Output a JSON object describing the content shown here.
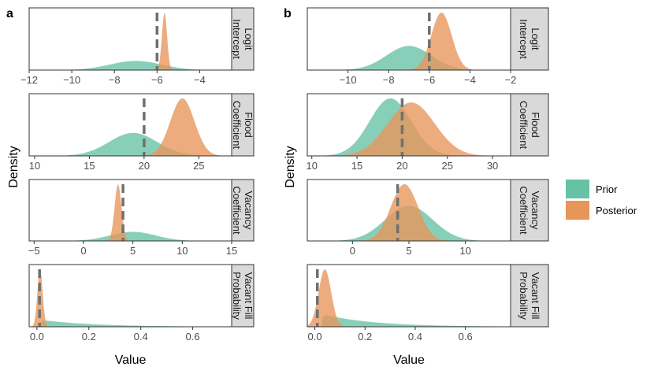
{
  "colors": {
    "prior": "#66c2a5",
    "posterior": "#e8955a",
    "strip": "#d9d9d9",
    "truth": "#707070"
  },
  "legend": {
    "prior": "Prior",
    "posterior": "Posterior"
  },
  "chart_data": [
    {
      "type": "area",
      "panel_label": "a",
      "ylabel": "Density",
      "xlabel": "Value",
      "facets": [
        {
          "strip": [
            "Logit",
            "Intercept"
          ],
          "xlim": [
            -12,
            -2.5
          ],
          "ticks": [
            -12,
            -10,
            -8,
            -6,
            -4
          ],
          "tick_labels": [
            "−12",
            "−10",
            "−8",
            "−6",
            "−4"
          ],
          "truth": -6,
          "prior": {
            "mean": -7,
            "sd": 1.2,
            "peak": 0.16
          },
          "posterior": {
            "mean": -5.65,
            "sd": 0.12,
            "peak": 1.0
          }
        },
        {
          "strip": [
            "Flood",
            "Coefficient"
          ],
          "xlim": [
            9.5,
            28
          ],
          "ticks": [
            10,
            15,
            20,
            25
          ],
          "tick_labels": [
            "10",
            "15",
            "20",
            "25"
          ],
          "truth": 20,
          "prior": {
            "mean": 19,
            "sd": 2.2,
            "peak": 0.4
          },
          "posterior": {
            "mean": 23.5,
            "sd": 1.1,
            "peak": 1.0
          }
        },
        {
          "strip": [
            "Vacancy",
            "Coefficient"
          ],
          "xlim": [
            -5.5,
            15
          ],
          "ticks": [
            -5,
            0,
            5,
            10,
            15
          ],
          "tick_labels": [
            "−5",
            "0",
            "5",
            "10",
            "15"
          ],
          "truth": 4,
          "prior": {
            "mean": 5,
            "sd": 2.3,
            "peak": 0.16
          },
          "posterior": {
            "mean": 3.5,
            "sd": 0.35,
            "peak": 1.0
          }
        },
        {
          "strip": [
            "Vacant Fill",
            "Probability"
          ],
          "xlim": [
            -0.03,
            0.75
          ],
          "ticks": [
            0,
            0.2,
            0.4,
            0.6
          ],
          "tick_labels": [
            "0.0",
            "0.2",
            "0.4",
            "0.6"
          ],
          "truth": 0.01,
          "prior": {
            "mean": 0.015,
            "sd": 0.2,
            "peak": 0.12,
            "skew": true
          },
          "posterior": {
            "mean": 0.012,
            "sd": 0.01,
            "peak": 1.0
          }
        }
      ]
    },
    {
      "type": "area",
      "panel_label": "b",
      "ylabel": "Density",
      "xlabel": "Value",
      "facets": [
        {
          "strip": [
            "Logit",
            "Intercept"
          ],
          "xlim": [
            -12,
            -2
          ],
          "ticks": [
            -10,
            -8,
            -6,
            -4,
            -2
          ],
          "tick_labels": [
            "−10",
            "−8",
            "−6",
            "−4",
            "−2"
          ],
          "truth": -6,
          "prior": {
            "mean": -7,
            "sd": 1.1,
            "peak": 0.42
          },
          "posterior": {
            "mean": -5.4,
            "sd": 0.5,
            "peak": 1.0
          }
        },
        {
          "strip": [
            "Flood",
            "Coefficient"
          ],
          "xlim": [
            9.5,
            32
          ],
          "ticks": [
            10,
            15,
            20,
            25,
            30
          ],
          "tick_labels": [
            "10",
            "15",
            "20",
            "25",
            "30"
          ],
          "truth": 20,
          "prior": {
            "mean": 18.7,
            "sd": 2.3,
            "peak": 1.0
          },
          "posterior": {
            "mean": 21,
            "sd": 2.6,
            "peak": 0.93
          }
        },
        {
          "strip": [
            "Vacancy",
            "Coefficient"
          ],
          "xlim": [
            -4,
            14
          ],
          "ticks": [
            0,
            5,
            10
          ],
          "tick_labels": [
            "0",
            "5",
            "10"
          ],
          "truth": 4,
          "prior": {
            "mean": 5,
            "sd": 2.1,
            "peak": 0.62
          },
          "posterior": {
            "mean": 4.6,
            "sd": 1.2,
            "peak": 1.0
          }
        },
        {
          "strip": [
            "Vacant Fill",
            "Probability"
          ],
          "xlim": [
            -0.03,
            0.78
          ],
          "ticks": [
            0,
            0.2,
            0.4,
            0.6
          ],
          "tick_labels": [
            "0.0",
            "0.2",
            "0.4",
            "0.6"
          ],
          "truth": 0.01,
          "prior": {
            "mean": 0.03,
            "sd": 0.2,
            "peak": 0.22,
            "skew": true
          },
          "posterior": {
            "mean": 0.04,
            "sd": 0.025,
            "peak": 1.0
          }
        }
      ]
    }
  ]
}
